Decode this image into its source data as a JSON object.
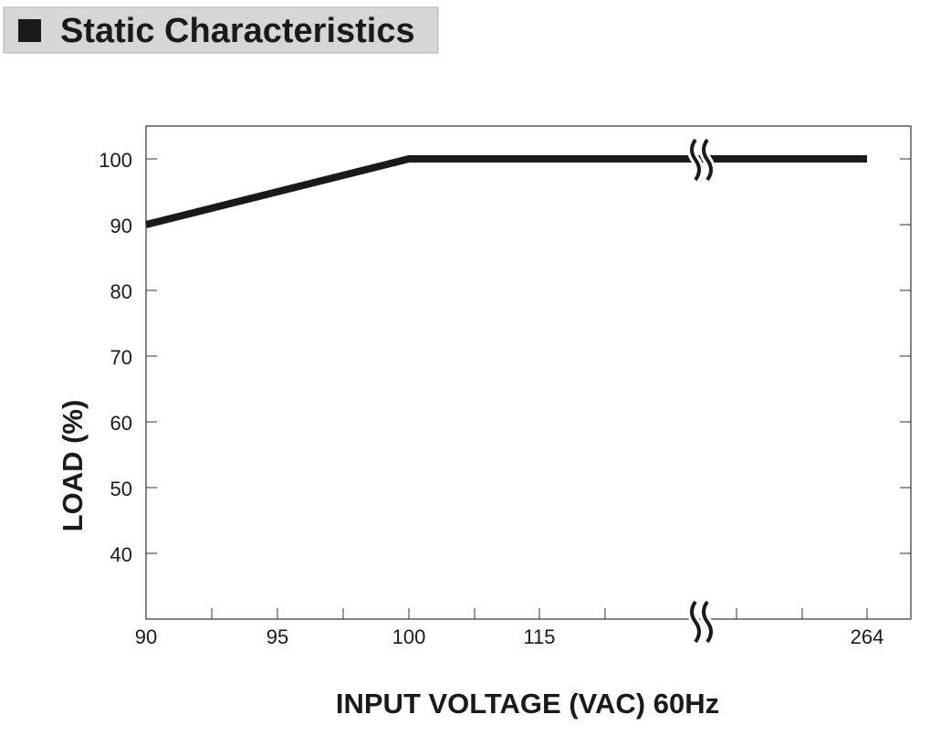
{
  "chart_data": {
    "type": "line",
    "title": "Static Characteristics",
    "x_label": "INPUT VOLTAGE (VAC) 60Hz",
    "y_label": "LOAD (%)",
    "x": [
      90,
      100,
      264
    ],
    "series": [
      {
        "name": "Load",
        "color": "#1a1a1a",
        "values": [
          90,
          100,
          100
        ]
      }
    ],
    "xticks": [
      90,
      95,
      100,
      115,
      264
    ],
    "ylim": [
      30,
      105
    ],
    "yticks": [
      40,
      50,
      60,
      70,
      80,
      90,
      100
    ]
  }
}
